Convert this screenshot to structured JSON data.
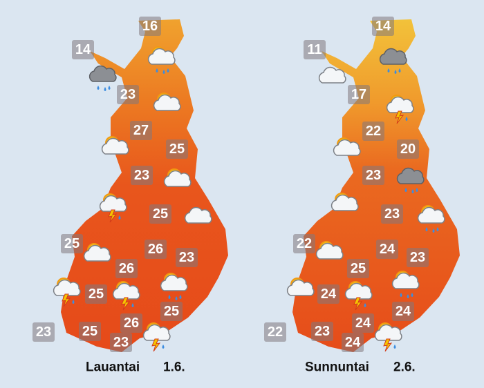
{
  "maps": [
    {
      "day": "Lauantai",
      "date": "1.6.",
      "temperatures": [
        16,
        14,
        23,
        27,
        25,
        23,
        25,
        25,
        26,
        23,
        26,
        25,
        25,
        26,
        23,
        25,
        23
      ]
    },
    {
      "day": "Sunnuntai",
      "date": "2.6.",
      "temperatures": [
        14,
        11,
        17,
        22,
        20,
        23,
        23,
        22,
        24,
        23,
        25,
        24,
        24,
        24,
        22,
        23,
        24
      ]
    }
  ]
}
